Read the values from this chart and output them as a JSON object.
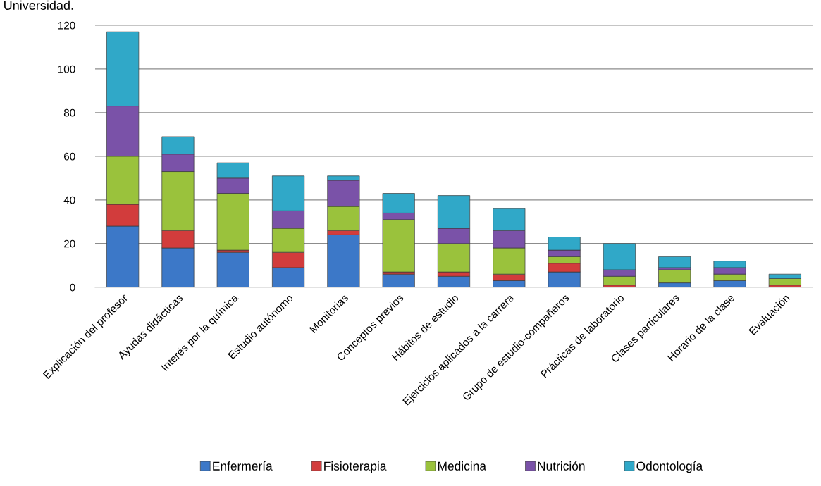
{
  "chart_data": {
    "type": "bar",
    "stacked": true,
    "annotations": [
      "Universidad."
    ],
    "categories": [
      "Explicación del profesor",
      "Ayudas didácticas",
      "Interés por la química",
      "Estudio autónomo",
      "Monitorias",
      "Conceptos previos",
      "Hábitos de estudio",
      "Ejercicios aplicados a la carrera",
      "Grupo de estudio-compañeros",
      "Prácticas de laboratorio",
      "Clases particulares",
      "Horario de la clase",
      "Evaluación"
    ],
    "series": [
      {
        "name": "Enfermería",
        "color": "#3c78c8",
        "values": [
          28,
          18,
          16,
          9,
          24,
          6,
          5,
          3,
          7,
          0,
          2,
          3,
          0
        ]
      },
      {
        "name": "Fisioterapia",
        "color": "#d23c3c",
        "values": [
          10,
          8,
          1,
          7,
          2,
          1,
          2,
          3,
          4,
          1,
          0,
          0,
          1
        ]
      },
      {
        "name": "Medicina",
        "color": "#9ac23c",
        "values": [
          22,
          27,
          26,
          11,
          11,
          24,
          13,
          12,
          3,
          4,
          6,
          3,
          3
        ]
      },
      {
        "name": "Nutrición",
        "color": "#7a52a8",
        "values": [
          23,
          8,
          7,
          8,
          12,
          3,
          7,
          8,
          3,
          3,
          1,
          3,
          0
        ]
      },
      {
        "name": "Odontología",
        "color": "#30a8c8",
        "values": [
          34,
          8,
          7,
          16,
          2,
          9,
          15,
          10,
          6,
          12,
          5,
          3,
          2
        ]
      }
    ],
    "ylim": [
      0,
      120
    ],
    "yticks": [
      0,
      20,
      40,
      60,
      80,
      100,
      120
    ],
    "grid": "y",
    "legend": "bottom"
  }
}
